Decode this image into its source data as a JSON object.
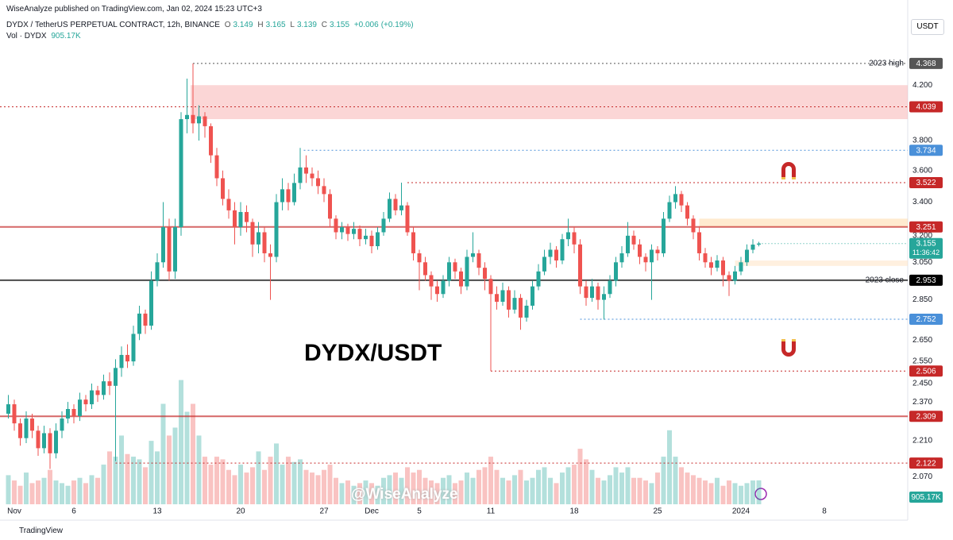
{
  "header": {
    "publisher": "WiseAnalyze published on TradingView.com, Jan 02, 2024 15:23 UTC+3",
    "symbol": "DYDX / TetherUS PERPETUAL CONTRACT, 12h, BINANCE",
    "o": 3.149,
    "h": 3.165,
    "l": 3.139,
    "c": 3.155,
    "change": {
      "value": 0.006,
      "label": "+0.006"
    },
    "change_pct": {
      "value": 0.19,
      "label": "(+0.19%)"
    },
    "volume_name": "Vol · DYDX",
    "volume": {
      "value": 905.17,
      "label": "905.17K"
    },
    "currency": "USDT"
  },
  "footer": "TradingView",
  "watermark": "@WiseAnalyze",
  "chart_data": {
    "type": "candlestick",
    "title": "DYDX/USDT",
    "log_scale": true,
    "grid": false,
    "up_color": "#26a69a",
    "down_color": "#ef5350",
    "ylim": [
      1.97,
      4.76
    ],
    "xlim": [
      -1.2,
      75
    ],
    "vlim": [
      0,
      7000
    ],
    "yticks": [
      {
        "value": 4.2,
        "label": "4.200"
      },
      {
        "value": 3.8,
        "label": "3.800"
      },
      {
        "value": 3.6,
        "label": "3.600"
      },
      {
        "value": 3.4,
        "label": "3.400"
      },
      {
        "value": 3.2,
        "label": "3.200"
      },
      {
        "value": 3.05,
        "label": "3.050"
      },
      {
        "value": 2.85,
        "label": "2.850"
      },
      {
        "value": 2.65,
        "label": "2.650"
      },
      {
        "value": 2.55,
        "label": "2.550"
      },
      {
        "value": 2.45,
        "label": "2.450"
      },
      {
        "value": 2.37,
        "label": "2.370"
      },
      {
        "value": 2.21,
        "label": "2.210"
      },
      {
        "value": 2.07,
        "label": "2.070"
      }
    ],
    "xticks": [
      {
        "value": 0,
        "label": "Nov"
      },
      {
        "value": 5,
        "label": "6"
      },
      {
        "value": 12,
        "label": "13"
      },
      {
        "value": 19,
        "label": "20"
      },
      {
        "value": 26,
        "label": "27"
      },
      {
        "value": 30,
        "label": "Dec"
      },
      {
        "value": 34,
        "label": "5"
      },
      {
        "value": 40,
        "label": "11"
      },
      {
        "value": 47,
        "label": "18"
      },
      {
        "value": 54,
        "label": "25"
      },
      {
        "value": 61,
        "label": "2024"
      },
      {
        "value": 68,
        "label": "8"
      }
    ],
    "x": [
      -0.5,
      0,
      0.5,
      1,
      1.5,
      2,
      2.5,
      3,
      3.5,
      4,
      4.5,
      5,
      5.5,
      6,
      6.5,
      7,
      7.5,
      8,
      8.5,
      9,
      9.5,
      10,
      10.5,
      11,
      11.5,
      12,
      12.5,
      13,
      13.5,
      14,
      14.5,
      15,
      15.5,
      16,
      16.5,
      17,
      17.5,
      18,
      18.5,
      19,
      19.5,
      20,
      20.5,
      21,
      21.5,
      22,
      22.5,
      23,
      23.5,
      24,
      24.5,
      25,
      25.5,
      26,
      26.5,
      27,
      27.5,
      28,
      28.5,
      29,
      29.5,
      30,
      30.5,
      31,
      31.5,
      32,
      32.5,
      33,
      33.5,
      34,
      34.5,
      35,
      35.5,
      36,
      36.5,
      37,
      37.5,
      38,
      38.5,
      39,
      39.5,
      40,
      40.5,
      41,
      41.5,
      42,
      42.5,
      43,
      43.5,
      44,
      44.5,
      45,
      45.5,
      46,
      46.5,
      47,
      47.5,
      48,
      48.5,
      49,
      49.5,
      50,
      50.5,
      51,
      51.5,
      52,
      52.5,
      53,
      53.5,
      54,
      54.5,
      55,
      55.5,
      56,
      56.5,
      57,
      57.5,
      58,
      58.5,
      59,
      59.5,
      60,
      60.5,
      61,
      61.5,
      62,
      62.5
    ],
    "ohlc": [
      [
        2.32,
        2.4,
        2.3,
        2.36
      ],
      [
        2.36,
        2.38,
        2.25,
        2.28
      ],
      [
        2.28,
        2.3,
        2.19,
        2.22
      ],
      [
        2.22,
        2.33,
        2.2,
        2.3
      ],
      [
        2.3,
        2.32,
        2.22,
        2.25
      ],
      [
        2.25,
        2.27,
        2.15,
        2.18
      ],
      [
        2.18,
        2.27,
        2.16,
        2.24
      ],
      [
        2.24,
        2.26,
        2.1,
        2.16
      ],
      [
        2.16,
        2.28,
        2.14,
        2.25
      ],
      [
        2.25,
        2.33,
        2.22,
        2.3
      ],
      [
        2.3,
        2.37,
        2.28,
        2.34
      ],
      [
        2.34,
        2.36,
        2.28,
        2.31
      ],
      [
        2.31,
        2.41,
        2.29,
        2.38
      ],
      [
        2.38,
        2.4,
        2.33,
        2.36
      ],
      [
        2.36,
        2.45,
        2.34,
        2.42
      ],
      [
        2.42,
        2.44,
        2.37,
        2.4
      ],
      [
        2.4,
        2.49,
        2.38,
        2.46
      ],
      [
        2.46,
        2.5,
        2.4,
        2.44
      ],
      [
        2.44,
        2.56,
        2.13,
        2.52
      ],
      [
        2.52,
        2.62,
        2.48,
        2.58
      ],
      [
        2.58,
        2.63,
        2.52,
        2.55
      ],
      [
        2.55,
        2.72,
        2.53,
        2.68
      ],
      [
        2.68,
        2.82,
        2.65,
        2.78
      ],
      [
        2.78,
        2.8,
        2.68,
        2.72
      ],
      [
        2.72,
        3.0,
        2.7,
        2.95
      ],
      [
        2.95,
        3.1,
        2.92,
        3.05
      ],
      [
        3.05,
        3.4,
        3.02,
        3.25
      ],
      [
        3.25,
        3.3,
        2.95,
        3.0
      ],
      [
        3.0,
        3.3,
        2.96,
        3.25
      ],
      [
        3.25,
        4.0,
        3.2,
        3.95
      ],
      [
        3.95,
        4.25,
        3.85,
        3.98
      ],
      [
        3.98,
        4.368,
        3.85,
        3.92
      ],
      [
        3.92,
        4.05,
        3.8,
        3.97
      ],
      [
        3.97,
        4.0,
        3.82,
        3.9
      ],
      [
        3.9,
        3.92,
        3.65,
        3.7
      ],
      [
        3.7,
        3.75,
        3.5,
        3.55
      ],
      [
        3.55,
        3.6,
        3.38,
        3.42
      ],
      [
        3.42,
        3.48,
        3.3,
        3.35
      ],
      [
        3.35,
        3.4,
        3.15,
        3.25
      ],
      [
        3.25,
        3.4,
        3.2,
        3.34
      ],
      [
        3.34,
        3.38,
        3.22,
        3.28
      ],
      [
        3.28,
        3.3,
        3.08,
        3.15
      ],
      [
        3.15,
        3.28,
        3.1,
        3.22
      ],
      [
        3.22,
        3.25,
        3.05,
        3.1
      ],
      [
        3.1,
        3.15,
        2.85,
        3.08
      ],
      [
        3.08,
        3.45,
        3.05,
        3.4
      ],
      [
        3.4,
        3.55,
        3.35,
        3.48
      ],
      [
        3.48,
        3.52,
        3.35,
        3.4
      ],
      [
        3.4,
        3.58,
        3.38,
        3.52
      ],
      [
        3.52,
        3.75,
        3.48,
        3.62
      ],
      [
        3.62,
        3.7,
        3.52,
        3.58
      ],
      [
        3.58,
        3.62,
        3.5,
        3.55
      ],
      [
        3.55,
        3.6,
        3.45,
        3.5
      ],
      [
        3.5,
        3.55,
        3.4,
        3.45
      ],
      [
        3.45,
        3.48,
        3.25,
        3.3
      ],
      [
        3.3,
        3.32,
        3.18,
        3.22
      ],
      [
        3.22,
        3.28,
        3.18,
        3.25
      ],
      [
        3.25,
        3.27,
        3.17,
        3.21
      ],
      [
        3.21,
        3.28,
        3.18,
        3.24
      ],
      [
        3.24,
        3.26,
        3.14,
        3.18
      ],
      [
        3.18,
        3.24,
        3.15,
        3.2
      ],
      [
        3.2,
        3.23,
        3.1,
        3.14
      ],
      [
        3.14,
        3.25,
        3.12,
        3.22
      ],
      [
        3.22,
        3.34,
        3.2,
        3.3
      ],
      [
        3.3,
        3.46,
        3.28,
        3.42
      ],
      [
        3.42,
        3.45,
        3.32,
        3.35
      ],
      [
        3.35,
        3.522,
        3.32,
        3.38
      ],
      [
        3.38,
        3.4,
        3.2,
        3.22
      ],
      [
        3.22,
        3.25,
        3.06,
        3.1
      ],
      [
        3.1,
        3.12,
        2.9,
        3.05
      ],
      [
        3.05,
        3.08,
        2.95,
        2.98
      ],
      [
        2.98,
        3.0,
        2.85,
        2.92
      ],
      [
        2.92,
        2.95,
        2.84,
        2.88
      ],
      [
        2.88,
        2.98,
        2.86,
        2.95
      ],
      [
        2.95,
        3.08,
        2.92,
        3.05
      ],
      [
        3.05,
        3.07,
        2.96,
        3.0
      ],
      [
        3.0,
        3.02,
        2.88,
        2.92
      ],
      [
        2.92,
        3.12,
        2.9,
        3.08
      ],
      [
        3.08,
        3.22,
        3.05,
        3.1
      ],
      [
        3.1,
        3.12,
        2.98,
        3.02
      ],
      [
        3.02,
        3.05,
        2.9,
        2.96
      ],
      [
        2.96,
        2.98,
        2.506,
        2.88
      ],
      [
        2.88,
        2.92,
        2.8,
        2.84
      ],
      [
        2.84,
        2.94,
        2.82,
        2.9
      ],
      [
        2.9,
        2.92,
        2.76,
        2.8
      ],
      [
        2.8,
        2.9,
        2.78,
        2.86
      ],
      [
        2.86,
        2.88,
        2.7,
        2.76
      ],
      [
        2.76,
        2.85,
        2.74,
        2.82
      ],
      [
        2.82,
        2.95,
        2.8,
        2.92
      ],
      [
        2.92,
        3.04,
        2.9,
        3.0
      ],
      [
        3.0,
        3.12,
        2.98,
        3.08
      ],
      [
        3.08,
        3.16,
        3.04,
        3.12
      ],
      [
        3.12,
        3.14,
        3.02,
        3.06
      ],
      [
        3.06,
        3.21,
        3.04,
        3.18
      ],
      [
        3.18,
        3.3,
        3.14,
        3.22
      ],
      [
        3.22,
        3.25,
        3.1,
        3.15
      ],
      [
        3.15,
        3.18,
        2.88,
        2.92
      ],
      [
        2.92,
        2.95,
        2.82,
        2.86
      ],
      [
        2.86,
        2.96,
        2.84,
        2.92
      ],
      [
        2.92,
        2.94,
        2.8,
        2.85
      ],
      [
        2.85,
        2.92,
        2.75,
        2.88
      ],
      [
        2.88,
        2.98,
        2.86,
        2.95
      ],
      [
        2.95,
        3.08,
        2.92,
        3.05
      ],
      [
        3.05,
        3.14,
        3.02,
        3.1
      ],
      [
        3.1,
        3.28,
        3.08,
        3.2
      ],
      [
        3.2,
        3.23,
        3.12,
        3.15
      ],
      [
        3.15,
        3.18,
        3.04,
        3.08
      ],
      [
        3.08,
        3.1,
        3.0,
        3.05
      ],
      [
        3.05,
        3.15,
        2.85,
        3.12
      ],
      [
        3.12,
        3.14,
        3.06,
        3.1
      ],
      [
        3.1,
        3.34,
        3.08,
        3.3
      ],
      [
        3.3,
        3.44,
        3.28,
        3.4
      ],
      [
        3.4,
        3.5,
        3.36,
        3.45
      ],
      [
        3.45,
        3.47,
        3.34,
        3.38
      ],
      [
        3.38,
        3.4,
        3.26,
        3.3
      ],
      [
        3.3,
        3.32,
        3.18,
        3.22
      ],
      [
        3.22,
        3.25,
        3.06,
        3.1
      ],
      [
        3.1,
        3.13,
        3.02,
        3.05
      ],
      [
        3.05,
        3.08,
        2.98,
        3.02
      ],
      [
        3.02,
        3.09,
        3.0,
        3.06
      ],
      [
        3.06,
        3.08,
        2.92,
        2.98
      ],
      [
        2.98,
        3.0,
        2.87,
        2.95
      ],
      [
        2.95,
        3.03,
        2.93,
        3.0
      ],
      [
        3.0,
        3.08,
        2.98,
        3.05
      ],
      [
        3.05,
        3.15,
        3.03,
        3.12
      ],
      [
        3.12,
        3.18,
        3.1,
        3.149
      ],
      [
        3.149,
        3.165,
        3.139,
        3.155
      ]
    ],
    "volume": [
      1100,
      900,
      700,
      1200,
      800,
      900,
      1000,
      1300,
      900,
      800,
      700,
      900,
      1000,
      800,
      1100,
      1000,
      1500,
      2000,
      1800,
      2600,
      1900,
      1800,
      1700,
      1400,
      2400,
      2000,
      3800,
      2600,
      2900,
      4700,
      3500,
      3800,
      2600,
      1800,
      1500,
      1800,
      1700,
      1300,
      1100,
      1500,
      1200,
      1400,
      2000,
      1300,
      1800,
      2300,
      1500,
      1800,
      1600,
      1700,
      1300,
      1200,
      1100,
      1300,
      1500,
      1000,
      800,
      900,
      700,
      800,
      900,
      800,
      700,
      1000,
      1100,
      1200,
      1000,
      1400,
      1200,
      1300,
      1000,
      900,
      800,
      1000,
      1100,
      800,
      900,
      1200,
      1000,
      1300,
      1400,
      1800,
      1300,
      1000,
      900,
      1100,
      1300,
      900,
      1000,
      1300,
      1400,
      1000,
      800,
      1200,
      1400,
      1500,
      2100,
      1700,
      1300,
      1000,
      900,
      1100,
      1400,
      1200,
      1400,
      1000,
      1000,
      900,
      800,
      1200,
      1800,
      2800,
      1800,
      1400,
      1200,
      1100,
      1000,
      900,
      800,
      1000,
      700,
      900,
      800,
      700,
      800,
      900,
      905.17
    ],
    "levels": [
      {
        "value": 4.368,
        "start": 15,
        "color": "#555555",
        "dash": true,
        "note": "2023 high"
      },
      {
        "value": 4.039,
        "start": -1.2,
        "color": "#c62828",
        "dash": true
      },
      {
        "value": 3.734,
        "start": 24.3,
        "color": "#4a90d9",
        "dash": true
      },
      {
        "value": 3.522,
        "start": 33,
        "color": "#c62828",
        "dash": true
      },
      {
        "value": 3.251,
        "start": -1.2,
        "color": "#c62828",
        "dash": false
      },
      {
        "value": 2.953,
        "start": -1.2,
        "color": "#000000",
        "dash": false,
        "note": "2023 close"
      },
      {
        "value": 2.752,
        "start": 47.5,
        "color": "#4a90d9",
        "dash": true
      },
      {
        "value": 2.506,
        "start": 40,
        "color": "#c62828",
        "dash": true
      },
      {
        "value": 2.309,
        "start": -1.2,
        "color": "#c62828",
        "dash": false
      },
      {
        "value": 2.122,
        "start": 8.5,
        "color": "#c62828",
        "dash": true
      }
    ],
    "zones": [
      {
        "range": [
          3.95,
          4.2
        ],
        "start": 14.8,
        "color": "#f8b4b4"
      },
      {
        "range": [
          3.25,
          3.3
        ],
        "start": 57.5,
        "color": "#ffd8a8"
      },
      {
        "range": [
          3.03,
          3.06
        ],
        "start": 60.5,
        "color": "#ffe3c4"
      }
    ],
    "last_price": 3.155,
    "countdown": "11:36:42"
  }
}
